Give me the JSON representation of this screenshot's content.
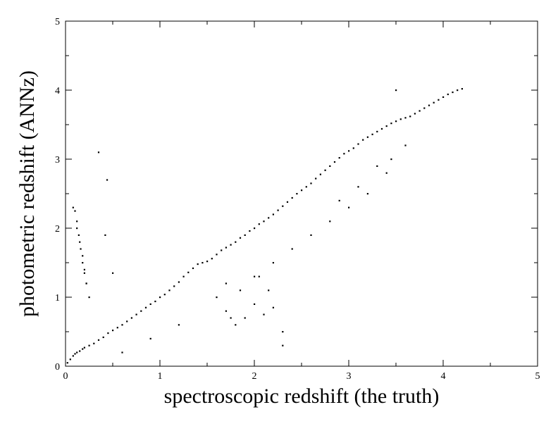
{
  "chart_data": {
    "type": "scatter",
    "title": "",
    "xlabel": "spectroscopic redshift (the truth)",
    "ylabel": "photometric redshift (ANNz)",
    "xlim": [
      0,
      5
    ],
    "ylim": [
      0,
      5
    ],
    "xticks": [
      "0",
      "1",
      "2",
      "3",
      "4",
      "5"
    ],
    "yticks": [
      "0",
      "1",
      "2",
      "3",
      "4",
      "5"
    ],
    "grid": false,
    "legend": "none",
    "marker_color": "#000000",
    "series": [
      {
        "x": [
          0.02,
          0.05,
          0.08,
          0.1,
          0.12,
          0.15,
          0.18,
          0.2,
          0.25,
          0.3,
          0.35,
          0.4,
          0.45,
          0.5,
          0.55,
          0.6,
          0.65,
          0.7,
          0.75,
          0.8,
          0.85,
          0.9,
          0.95,
          1.0,
          1.05,
          1.1,
          1.15,
          1.2,
          1.25,
          1.3,
          1.35,
          1.4,
          1.45,
          1.5,
          1.55,
          1.6,
          1.65,
          1.7,
          1.75,
          1.8,
          1.85,
          1.9,
          1.95,
          2.0,
          2.05,
          2.1,
          2.15,
          2.2,
          2.25,
          2.3,
          2.35,
          2.4,
          2.45,
          2.5,
          2.55,
          2.6,
          2.65,
          2.7,
          2.75,
          2.8,
          2.85,
          2.9,
          2.95,
          3.0,
          3.05,
          3.1,
          3.15,
          3.2,
          3.25,
          3.3,
          3.35,
          3.4,
          3.45,
          3.5,
          3.55,
          3.6,
          3.65,
          3.7,
          3.75,
          3.8,
          3.85,
          3.9,
          3.95,
          4.0,
          4.05,
          4.1,
          4.15,
          4.2,
          0.08,
          0.1,
          0.12,
          0.14,
          0.16,
          0.18,
          0.2,
          0.22,
          0.12,
          0.15,
          0.18,
          0.2,
          0.22,
          0.25,
          0.35,
          0.44,
          0.5,
          0.42,
          1.6,
          1.7,
          1.8,
          1.9,
          2.0,
          2.1,
          2.2,
          2.3,
          1.7,
          1.85,
          2.0,
          2.2,
          2.4,
          2.6,
          2.8,
          3.0,
          3.2,
          3.4,
          3.5,
          3.6,
          2.9,
          3.1,
          3.3,
          3.45,
          2.05,
          2.15,
          1.75,
          2.3,
          0.9,
          1.2,
          0.6
        ],
        "y": [
          0.05,
          0.1,
          0.15,
          0.18,
          0.2,
          0.22,
          0.25,
          0.27,
          0.3,
          0.33,
          0.38,
          0.42,
          0.48,
          0.52,
          0.56,
          0.6,
          0.65,
          0.7,
          0.75,
          0.8,
          0.85,
          0.9,
          0.94,
          1.0,
          1.04,
          1.1,
          1.16,
          1.22,
          1.3,
          1.36,
          1.42,
          1.48,
          1.5,
          1.52,
          1.56,
          1.62,
          1.68,
          1.72,
          1.76,
          1.8,
          1.86,
          1.9,
          1.96,
          2.0,
          2.06,
          2.1,
          2.15,
          2.2,
          2.26,
          2.32,
          2.38,
          2.44,
          2.5,
          2.55,
          2.6,
          2.65,
          2.72,
          2.78,
          2.84,
          2.9,
          2.96,
          3.02,
          3.08,
          3.12,
          3.16,
          3.22,
          3.28,
          3.32,
          3.36,
          3.4,
          3.44,
          3.48,
          3.52,
          3.55,
          3.58,
          3.6,
          3.62,
          3.66,
          3.7,
          3.74,
          3.78,
          3.82,
          3.86,
          3.9,
          3.94,
          3.97,
          4.0,
          4.02,
          2.3,
          2.25,
          2.1,
          1.9,
          1.7,
          1.5,
          1.35,
          1.2,
          2.0,
          1.8,
          1.6,
          1.4,
          1.2,
          1.0,
          3.1,
          2.7,
          1.35,
          1.9,
          1.0,
          0.8,
          0.6,
          0.7,
          0.9,
          0.75,
          0.85,
          0.5,
          1.2,
          1.1,
          1.3,
          1.5,
          1.7,
          1.9,
          2.1,
          2.3,
          2.5,
          2.8,
          4.0,
          3.2,
          2.4,
          2.6,
          2.9,
          3.0,
          1.3,
          1.1,
          0.7,
          0.3,
          0.4,
          0.6,
          0.2
        ]
      }
    ]
  }
}
